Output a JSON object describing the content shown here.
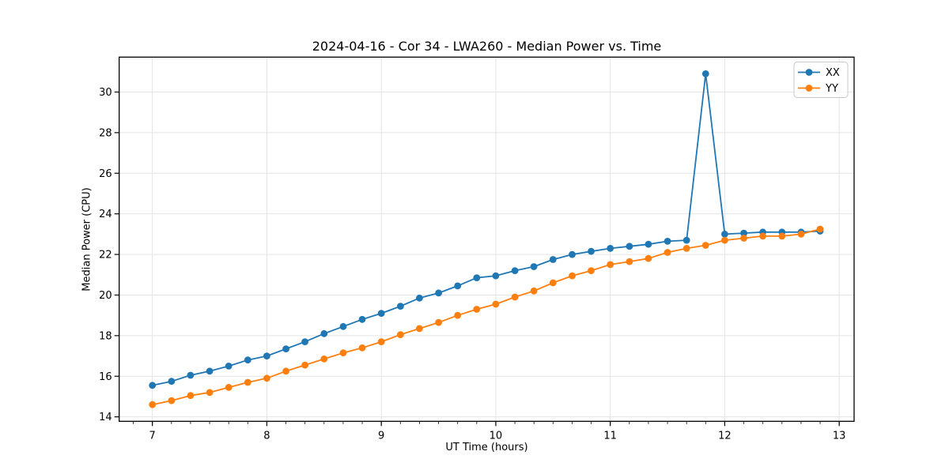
{
  "figure": {
    "background": "#ffffff",
    "spine_color": "#000000",
    "grid_color": "#e4e4e4",
    "tick_color": "#000000"
  },
  "chart_data": {
    "type": "line",
    "title": "2024-04-16 - Cor 34 - LWA260 - Median Power vs. Time",
    "xlabel": "UT Time (hours)",
    "ylabel": "Median Power (CPU)",
    "xlim": [
      6.71,
      13.13
    ],
    "ylim": [
      13.78,
      31.72
    ],
    "xticks": [
      7,
      8,
      9,
      10,
      11,
      12,
      13
    ],
    "yticks": [
      14,
      16,
      18,
      20,
      22,
      24,
      26,
      28,
      30
    ],
    "x_minor_step": 0.166667,
    "grid": true,
    "legend_position": "upper right",
    "x": [
      7.0,
      7.167,
      7.333,
      7.5,
      7.667,
      7.833,
      8.0,
      8.167,
      8.333,
      8.5,
      8.667,
      8.833,
      9.0,
      9.167,
      9.333,
      9.5,
      9.667,
      9.833,
      10.0,
      10.167,
      10.333,
      10.5,
      10.667,
      10.833,
      11.0,
      11.167,
      11.333,
      11.5,
      11.667,
      11.833,
      12.0,
      12.167,
      12.333,
      12.5,
      12.667,
      12.833
    ],
    "series": [
      {
        "name": "XX",
        "color": "#1f77b4",
        "values": [
          15.55,
          15.75,
          16.05,
          16.25,
          16.5,
          16.8,
          17.0,
          17.35,
          17.7,
          18.1,
          18.45,
          18.8,
          19.1,
          19.45,
          19.85,
          20.1,
          20.45,
          20.85,
          20.95,
          21.2,
          21.4,
          21.75,
          22.0,
          22.15,
          22.3,
          22.4,
          22.5,
          22.65,
          22.7,
          30.9,
          23.0,
          23.05,
          23.1,
          23.1,
          23.1,
          23.15
        ]
      },
      {
        "name": "YY",
        "color": "#ff7f0e",
        "values": [
          14.6,
          14.8,
          15.05,
          15.2,
          15.45,
          15.7,
          15.9,
          16.25,
          16.55,
          16.85,
          17.15,
          17.4,
          17.7,
          18.05,
          18.35,
          18.65,
          19.0,
          19.3,
          19.55,
          19.9,
          20.2,
          20.6,
          20.95,
          21.2,
          21.5,
          21.65,
          21.8,
          22.1,
          22.3,
          22.45,
          22.7,
          22.8,
          22.9,
          22.9,
          23.0,
          23.25
        ]
      }
    ]
  }
}
